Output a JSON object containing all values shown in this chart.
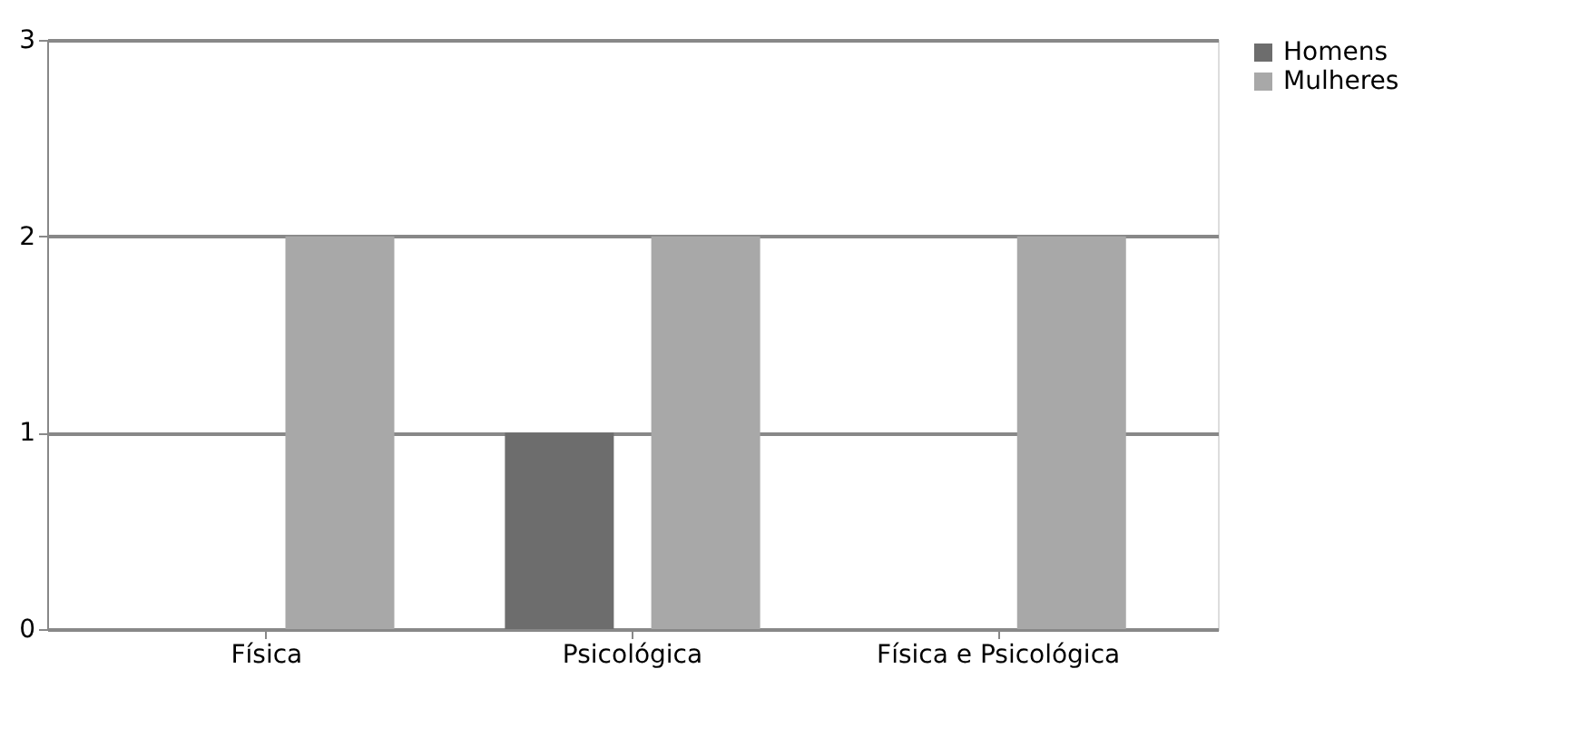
{
  "chart_data": {
    "type": "bar",
    "categories": [
      "Física",
      "Psicológica",
      "Física e Psicológica"
    ],
    "series": [
      {
        "name": "Homens",
        "color": "#6d6d6d",
        "values": [
          0,
          1,
          0
        ]
      },
      {
        "name": "Mulheres",
        "color": "#a8a8a8",
        "values": [
          2,
          2,
          2
        ]
      }
    ],
    "ylim": [
      0,
      3
    ],
    "yticks": [
      0,
      1,
      2,
      3
    ],
    "grid": "y",
    "legend": "right"
  }
}
